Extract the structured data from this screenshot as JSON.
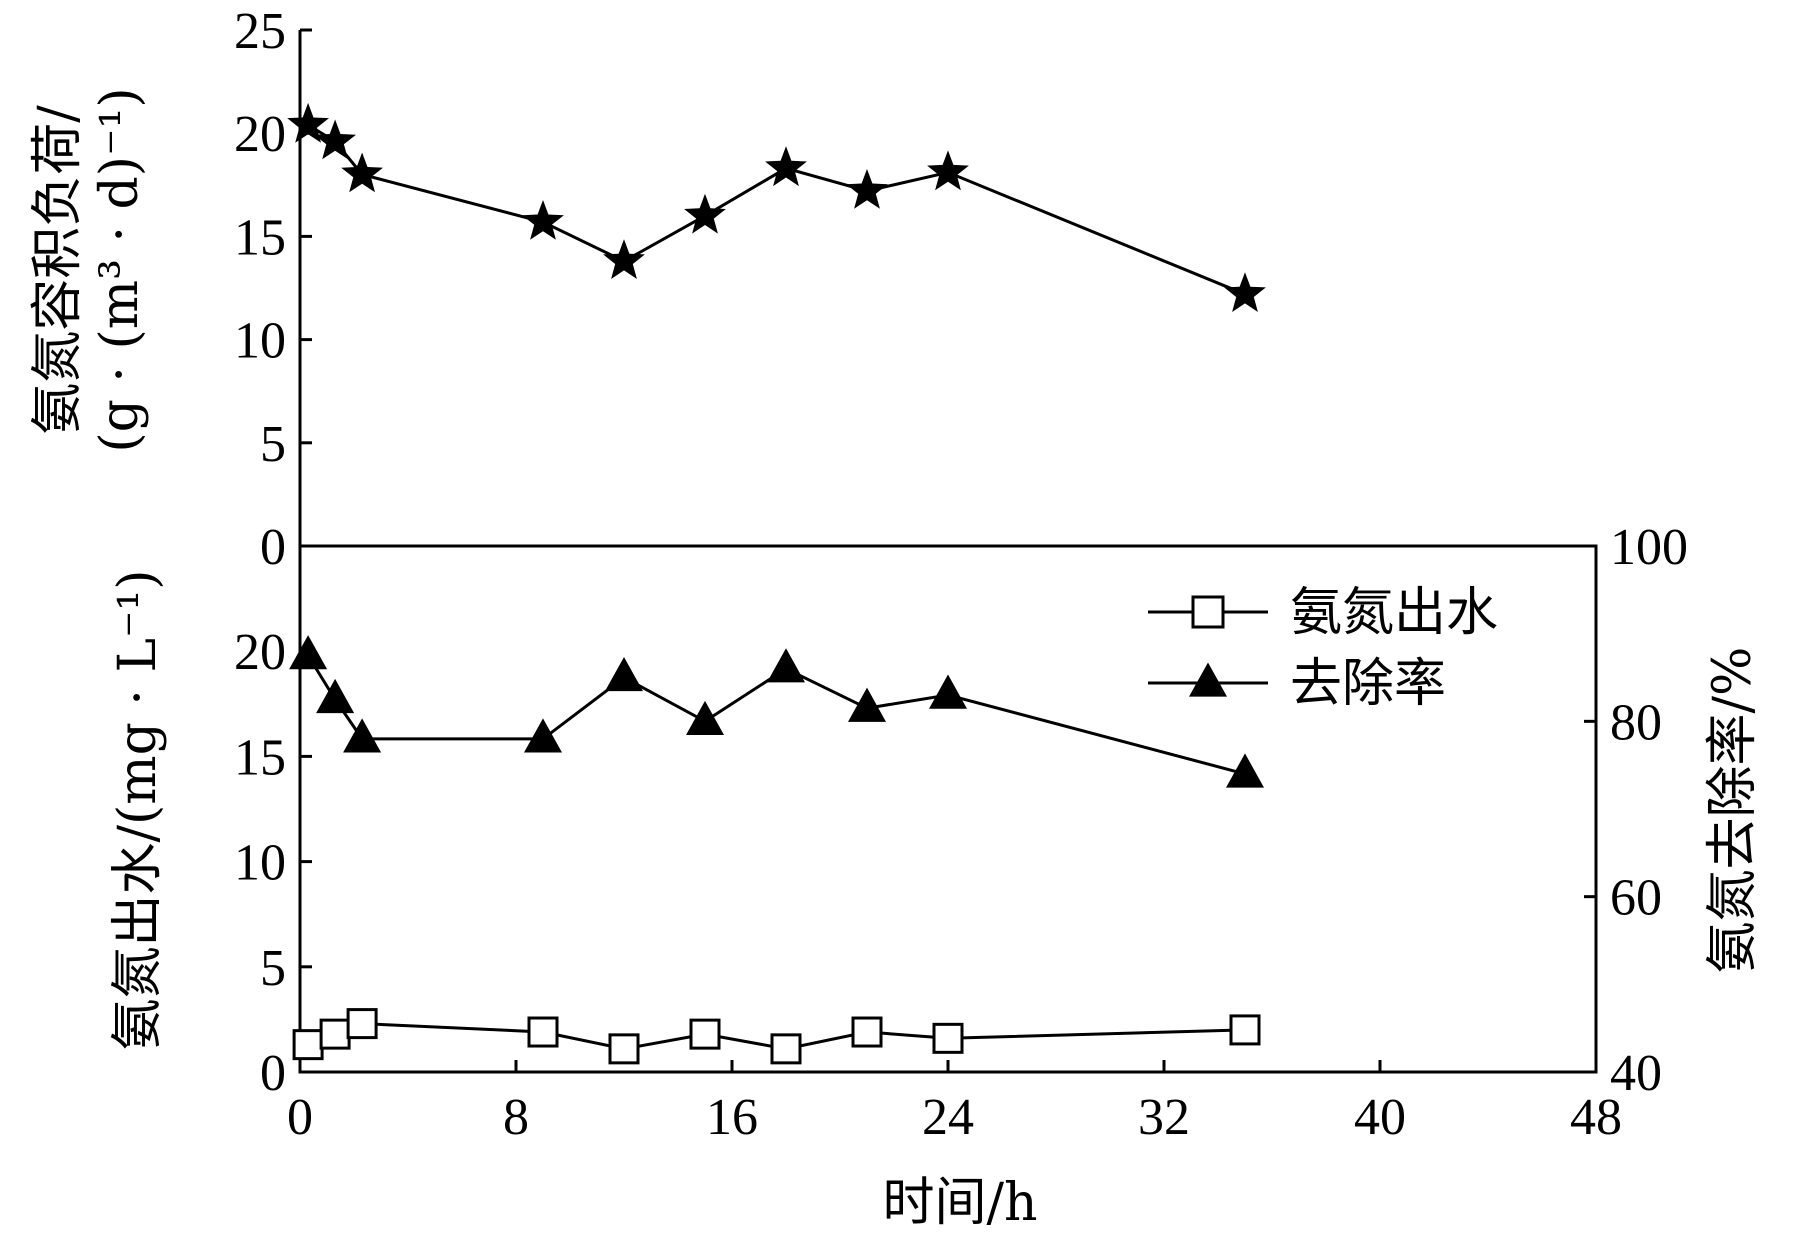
{
  "chart_data": [
    {
      "type": "line",
      "panel": "top",
      "ylabel_lines": [
        "氨氮容积负荷/",
        "(g · (m³ · d)⁻¹)"
      ],
      "ylim": [
        0,
        25
      ],
      "yticks": [
        "0",
        "5",
        "10",
        "15",
        "20",
        "25"
      ],
      "xlim": [
        0,
        48
      ],
      "series": [
        {
          "marker": "star",
          "x": [
            0.3,
            1.3,
            2.3,
            9,
            12,
            15,
            18,
            21,
            24,
            35
          ],
          "y": [
            20.4,
            19.6,
            18.0,
            15.7,
            13.8,
            16.0,
            18.3,
            17.2,
            18.1,
            12.2
          ]
        }
      ]
    },
    {
      "type": "line",
      "panel": "bottom",
      "xlabel": "时间/h",
      "ylabel": "氨氮出水/(mg · L⁻¹)",
      "y2label": "氨氮去除率/%",
      "xlim": [
        0,
        48
      ],
      "xticks": [
        "0",
        "8",
        "16",
        "24",
        "32",
        "40",
        "48"
      ],
      "ylim": [
        0,
        25
      ],
      "yticks": [
        "0",
        "5",
        "10",
        "15",
        "20"
      ],
      "y2lim": [
        40,
        100
      ],
      "y2ticks": [
        "40",
        "60",
        "80",
        "100"
      ],
      "legend_position": "top-right",
      "series": [
        {
          "name": "氨氮出水",
          "axis": "left",
          "marker": "open-square",
          "x": [
            0.3,
            1.3,
            2.3,
            9,
            12,
            15,
            18,
            21,
            24,
            35
          ],
          "y": [
            1.3,
            1.8,
            2.3,
            1.9,
            1.1,
            1.8,
            1.1,
            1.9,
            1.6,
            2.0
          ]
        },
        {
          "name": "去除率",
          "axis": "right",
          "marker": "filled-triangle",
          "x": [
            0.3,
            1.3,
            2.3,
            9,
            12,
            15,
            18,
            21,
            24,
            35
          ],
          "y": [
            87.5,
            82.5,
            78,
            78,
            85,
            80,
            86,
            81.5,
            83,
            74
          ]
        }
      ]
    }
  ]
}
